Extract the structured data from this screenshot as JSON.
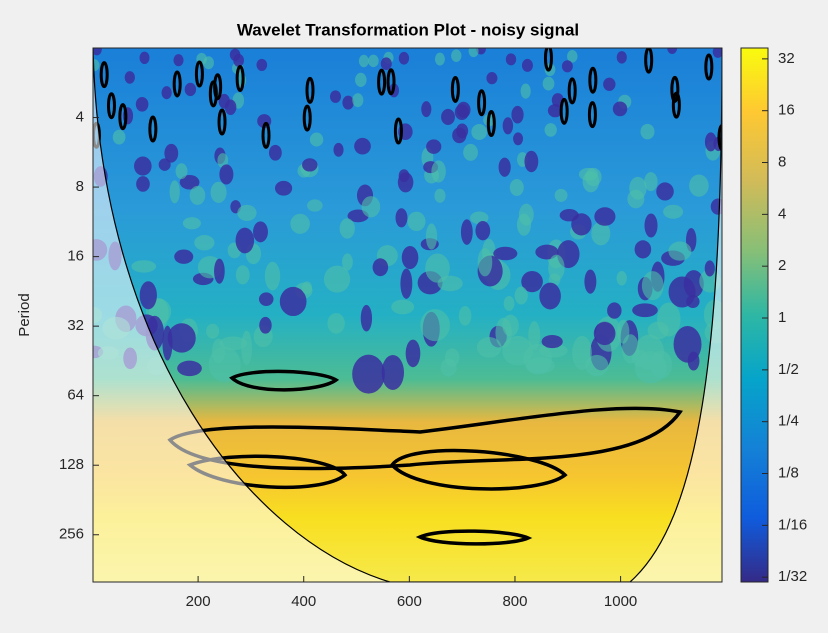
{
  "chart_data": {
    "type": "wavelet",
    "title": "Wavelet Transformation Plot - noisy signal",
    "ylabel": "Period",
    "xlim": [
      1,
      1192
    ],
    "xticks": [
      200,
      400,
      600,
      800,
      1000
    ],
    "ylim": [
      2,
      410
    ],
    "yscale": "log2",
    "yticks": [
      4,
      8,
      16,
      32,
      64,
      128,
      256
    ],
    "colorbar": {
      "clim": [
        0.0293,
        37
      ],
      "scale": "log2",
      "ticks": [
        32,
        16,
        8,
        4,
        2,
        1,
        {
          "value": 0.5,
          "label": "1/2"
        },
        {
          "value": 0.25,
          "label": "1/4"
        },
        {
          "value": 0.125,
          "label": "1/8"
        },
        {
          "value": 0.0625,
          "label": "1/16"
        },
        {
          "value": 0.03125,
          "label": "1/32"
        }
      ]
    }
  }
}
